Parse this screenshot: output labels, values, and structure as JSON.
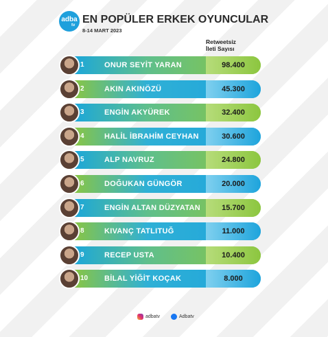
{
  "header": {
    "logo": "adba",
    "logo_sub": "tv",
    "title": "EN POPÜLER ERKEK OYUNCULAR",
    "date": "8-14 MART 2023",
    "column_title": "Retweetsiz\nİleti Sayısı"
  },
  "rows": [
    {
      "rank": "1",
      "name": "ONUR SEYİT YARAN",
      "value": "98.400"
    },
    {
      "rank": "2",
      "name": "AKIN AKINÖZÜ",
      "value": "45.300"
    },
    {
      "rank": "3",
      "name": "ENGİN AKYÜREK",
      "value": "32.400"
    },
    {
      "rank": "4",
      "name": "HALİL İBRAHİM CEYHAN",
      "value": "30.600"
    },
    {
      "rank": "5",
      "name": "ALP NAVRUZ",
      "value": "24.800"
    },
    {
      "rank": "6",
      "name": "DOĞUKAN GÜNGÖR",
      "value": "20.000"
    },
    {
      "rank": "7",
      "name": "ENGİN ALTAN DÜZYATAN",
      "value": "15.700"
    },
    {
      "rank": "8",
      "name": "KIVANÇ TATLITUĞ",
      "value": "11.000"
    },
    {
      "rank": "9",
      "name": "RECEP USTA",
      "value": "10.400"
    },
    {
      "rank": "10",
      "name": "BİLAL YİĞİT KOÇAK",
      "value": "8.000"
    }
  ],
  "footer": {
    "instagram": "adbatv",
    "facebook": "Adbatv"
  }
}
